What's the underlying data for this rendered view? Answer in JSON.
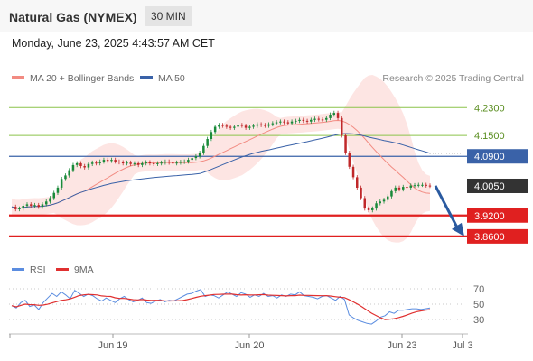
{
  "header": {
    "title": "Natural Gas (NYMEX)",
    "timeframe": "30 MIN"
  },
  "date": "Monday, June 23, 2025 4:43:57 AM CET",
  "legend": {
    "ma20": "MA 20 + Bollinger Bands",
    "ma50": "MA 50",
    "rsi": "RSI",
    "ma9": "9MA"
  },
  "credit": "Research © 2025 Trading Central",
  "colors": {
    "ma20": "#f28b82",
    "ma50": "#3a62a8",
    "bollinger_fill": "#fde0de",
    "resistance": "#8bc34a",
    "pivot": "#3a62a8",
    "support": "#e02020",
    "candle_up": "#1a8a3a",
    "candle_down": "#c0282a",
    "rsi": "#5b8de0",
    "rsi_ma": "#e03030",
    "arrow": "#2a5aa0"
  },
  "chart_data": {
    "type": "candlestick",
    "y_range": [
      3.8,
      4.28
    ],
    "x_labels": [
      "Jun 19",
      "Jun 20",
      "Jun 23",
      "Jul 3"
    ],
    "levels": [
      {
        "value": "4.2300",
        "kind": "resistance"
      },
      {
        "value": "4.1500",
        "kind": "resistance"
      },
      {
        "value": "4.0900",
        "kind": "pivot"
      },
      {
        "value": "4.0050",
        "kind": "last"
      },
      {
        "value": "3.9200",
        "kind": "support"
      },
      {
        "value": "3.8600",
        "kind": "support"
      }
    ],
    "close": [
      3.945,
      3.938,
      3.94,
      3.948,
      3.952,
      3.948,
      3.95,
      3.945,
      3.952,
      3.96,
      3.97,
      3.985,
      4.0,
      4.025,
      4.035,
      4.05,
      4.065,
      4.07,
      4.062,
      4.058,
      4.068,
      4.072,
      4.07,
      4.075,
      4.08,
      4.077,
      4.08,
      4.075,
      4.073,
      4.07,
      4.072,
      4.068,
      4.07,
      4.065,
      4.07,
      4.073,
      4.07,
      4.068,
      4.07,
      4.072,
      4.075,
      4.072,
      4.07,
      4.072,
      4.074,
      4.075,
      4.08,
      4.085,
      4.09,
      4.1,
      4.12,
      4.14,
      4.16,
      4.175,
      4.18,
      4.178,
      4.175,
      4.172,
      4.175,
      4.18,
      4.178,
      4.172,
      4.175,
      4.178,
      4.182,
      4.18,
      4.178,
      4.182,
      4.185,
      4.188,
      4.19,
      4.188,
      4.185,
      4.19,
      4.192,
      4.195,
      4.192,
      4.19,
      4.195,
      4.198,
      4.196,
      4.195,
      4.2,
      4.21,
      4.215,
      4.2,
      4.15,
      4.1,
      4.06,
      4.03,
      4.0,
      3.97,
      3.94,
      3.935,
      3.94,
      3.955,
      3.96,
      3.965,
      3.975,
      3.99,
      4.0,
      3.995,
      4.002,
      4.0,
      4.006,
      4.007,
      4.008,
      4.008,
      4.006,
      4.005
    ],
    "rsi": {
      "levels": [
        70,
        50,
        30
      ],
      "values": [
        48,
        45,
        52,
        55,
        47,
        49,
        43,
        52,
        58,
        64,
        60,
        66,
        62,
        57,
        68,
        64,
        60,
        63,
        61,
        57,
        54,
        58,
        55,
        52,
        57,
        60,
        56,
        53,
        55,
        58,
        52,
        51,
        54,
        56,
        53,
        55,
        54,
        57,
        60,
        63,
        64,
        67,
        69,
        60,
        62,
        61,
        58,
        62,
        66,
        63,
        60,
        65,
        63,
        59,
        62,
        60,
        64,
        60,
        61,
        58,
        62,
        60,
        63,
        62,
        66,
        61,
        60,
        59,
        57,
        60,
        61,
        58,
        55,
        60,
        56,
        36,
        32,
        29,
        27,
        25,
        24,
        28,
        33,
        35,
        40,
        38,
        42,
        42,
        43,
        44,
        44,
        43,
        44,
        45
      ]
    }
  }
}
